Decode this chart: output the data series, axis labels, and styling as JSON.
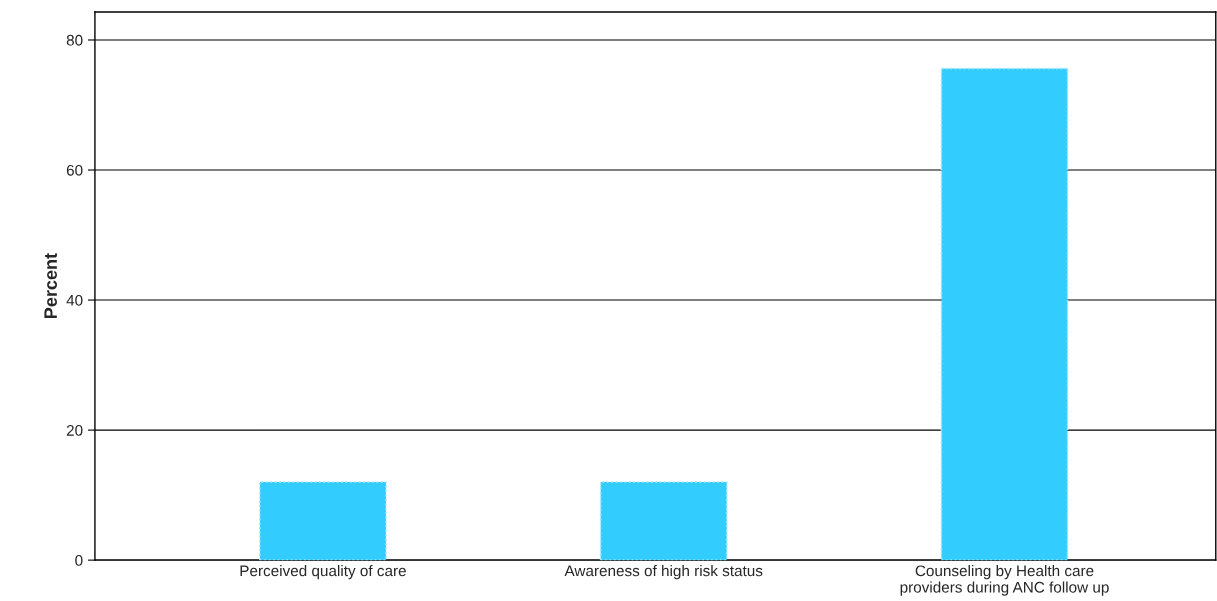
{
  "chart_data": {
    "type": "bar",
    "ylabel": "Percent",
    "categories": [
      "Perceived quality of care",
      "Awareness of high risk status",
      "Counseling by Health care\nproviders during ANC follow up"
    ],
    "values": [
      12.0,
      12.0,
      75.6
    ],
    "color": "#33ccff",
    "ylim": [
      0,
      84.3
    ],
    "yticks": [
      0,
      20,
      40,
      60,
      80
    ],
    "grid": "y"
  }
}
